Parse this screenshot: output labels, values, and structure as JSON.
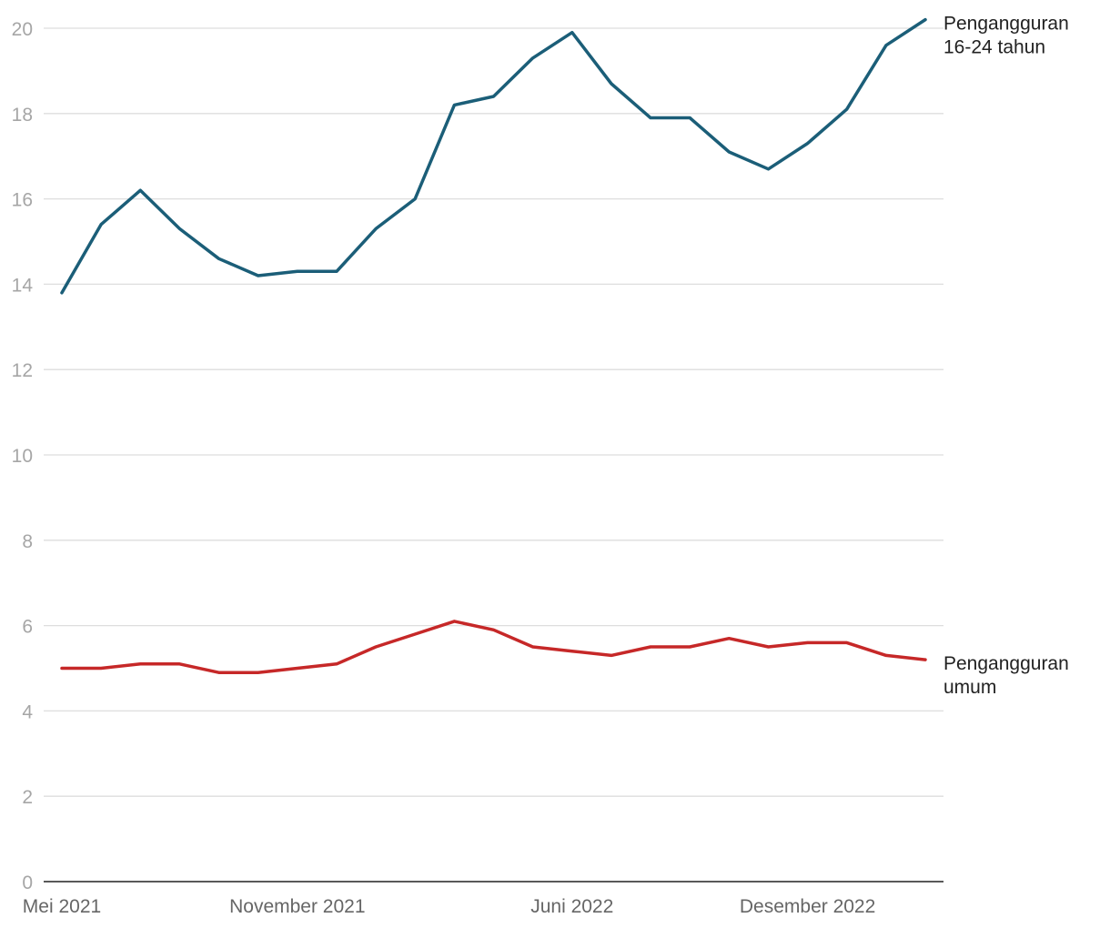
{
  "chart_data": {
    "type": "line",
    "title": "",
    "xlabel": "",
    "ylabel": "",
    "ylim": [
      0,
      20
    ],
    "yticks": [
      0,
      2,
      4,
      6,
      8,
      10,
      12,
      14,
      16,
      18,
      20
    ],
    "grid": true,
    "x": [
      "2021-05",
      "2021-06",
      "2021-07",
      "2021-08",
      "2021-09",
      "2021-10",
      "2021-11",
      "2021-12",
      "2022-01",
      "2022-02",
      "2022-03",
      "2022-04",
      "2022-05",
      "2022-06",
      "2022-07",
      "2022-08",
      "2022-09",
      "2022-10",
      "2022-11",
      "2022-12",
      "2023-01",
      "2023-02",
      "2023-03"
    ],
    "xtick_labels": [
      {
        "x": "2021-05",
        "label": "Mei 2021"
      },
      {
        "x": "2021-11",
        "label": "November 2021"
      },
      {
        "x": "2022-06",
        "label": "Juni 2022"
      },
      {
        "x": "2022-12",
        "label": "Desember 2022"
      }
    ],
    "series": [
      {
        "name_lines": [
          "Pengangguran",
          "16-24 tahun"
        ],
        "color": "#1b5e78",
        "values": [
          13.8,
          15.4,
          16.2,
          15.3,
          14.6,
          14.2,
          14.3,
          14.3,
          15.3,
          16.0,
          18.2,
          18.4,
          19.3,
          19.9,
          18.7,
          17.9,
          17.9,
          17.1,
          16.7,
          17.3,
          18.1,
          19.6,
          20.2
        ]
      },
      {
        "name_lines": [
          "Pengangguran",
          "umum"
        ],
        "color": "#c62828",
        "values": [
          5.0,
          5.0,
          5.1,
          5.1,
          4.9,
          4.9,
          5.0,
          5.1,
          5.5,
          5.8,
          6.1,
          5.9,
          5.5,
          5.4,
          5.3,
          5.5,
          5.5,
          5.7,
          5.5,
          5.6,
          5.6,
          5.3,
          5.2
        ]
      }
    ]
  }
}
